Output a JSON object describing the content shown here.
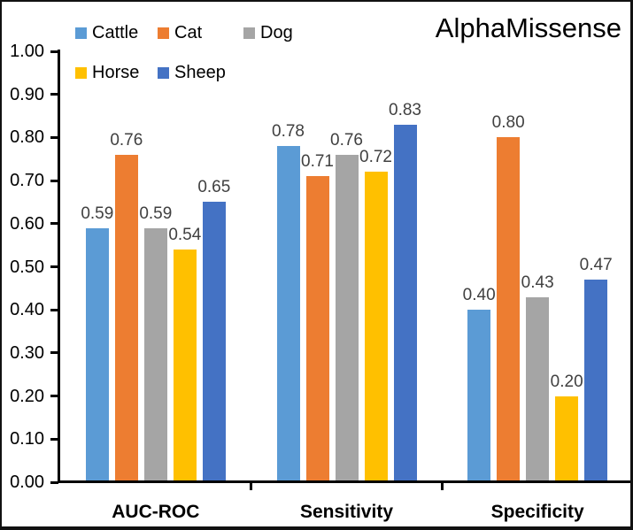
{
  "chart_data": {
    "type": "bar",
    "title": "AlphaMissense",
    "categories": [
      "AUC-ROC",
      "Sensitivity",
      "Specificity"
    ],
    "series": [
      {
        "name": "Cattle",
        "color": "#5B9BD5",
        "values": [
          0.59,
          0.78,
          0.4
        ]
      },
      {
        "name": "Cat",
        "color": "#ED7D31",
        "values": [
          0.76,
          0.71,
          0.8
        ]
      },
      {
        "name": "Dog",
        "color": "#A5A5A5",
        "values": [
          0.59,
          0.76,
          0.43
        ]
      },
      {
        "name": "Horse",
        "color": "#FFC000",
        "values": [
          0.54,
          0.72,
          0.2
        ]
      },
      {
        "name": "Sheep",
        "color": "#4472C4",
        "values": [
          0.65,
          0.83,
          0.47
        ]
      }
    ],
    "xlabel": "",
    "ylabel": "",
    "ylim": [
      0.0,
      1.0
    ],
    "ytick_step": 0.1,
    "ytick_labels": [
      "0.00",
      "0.10",
      "0.20",
      "0.30",
      "0.40",
      "0.50",
      "0.60",
      "0.70",
      "0.80",
      "0.90",
      "1.00"
    ],
    "value_labels_shown": true,
    "value_label_decimals": 2,
    "grid": false,
    "legend_position": "top-left",
    "legend_rows": [
      [
        "Cattle",
        "Cat",
        "Dog"
      ],
      [
        "Horse",
        "Sheep"
      ]
    ]
  },
  "colors": {
    "axis": "#000000",
    "value_label": "#404040",
    "text": "#000000",
    "background": "#FFFFFF"
  }
}
